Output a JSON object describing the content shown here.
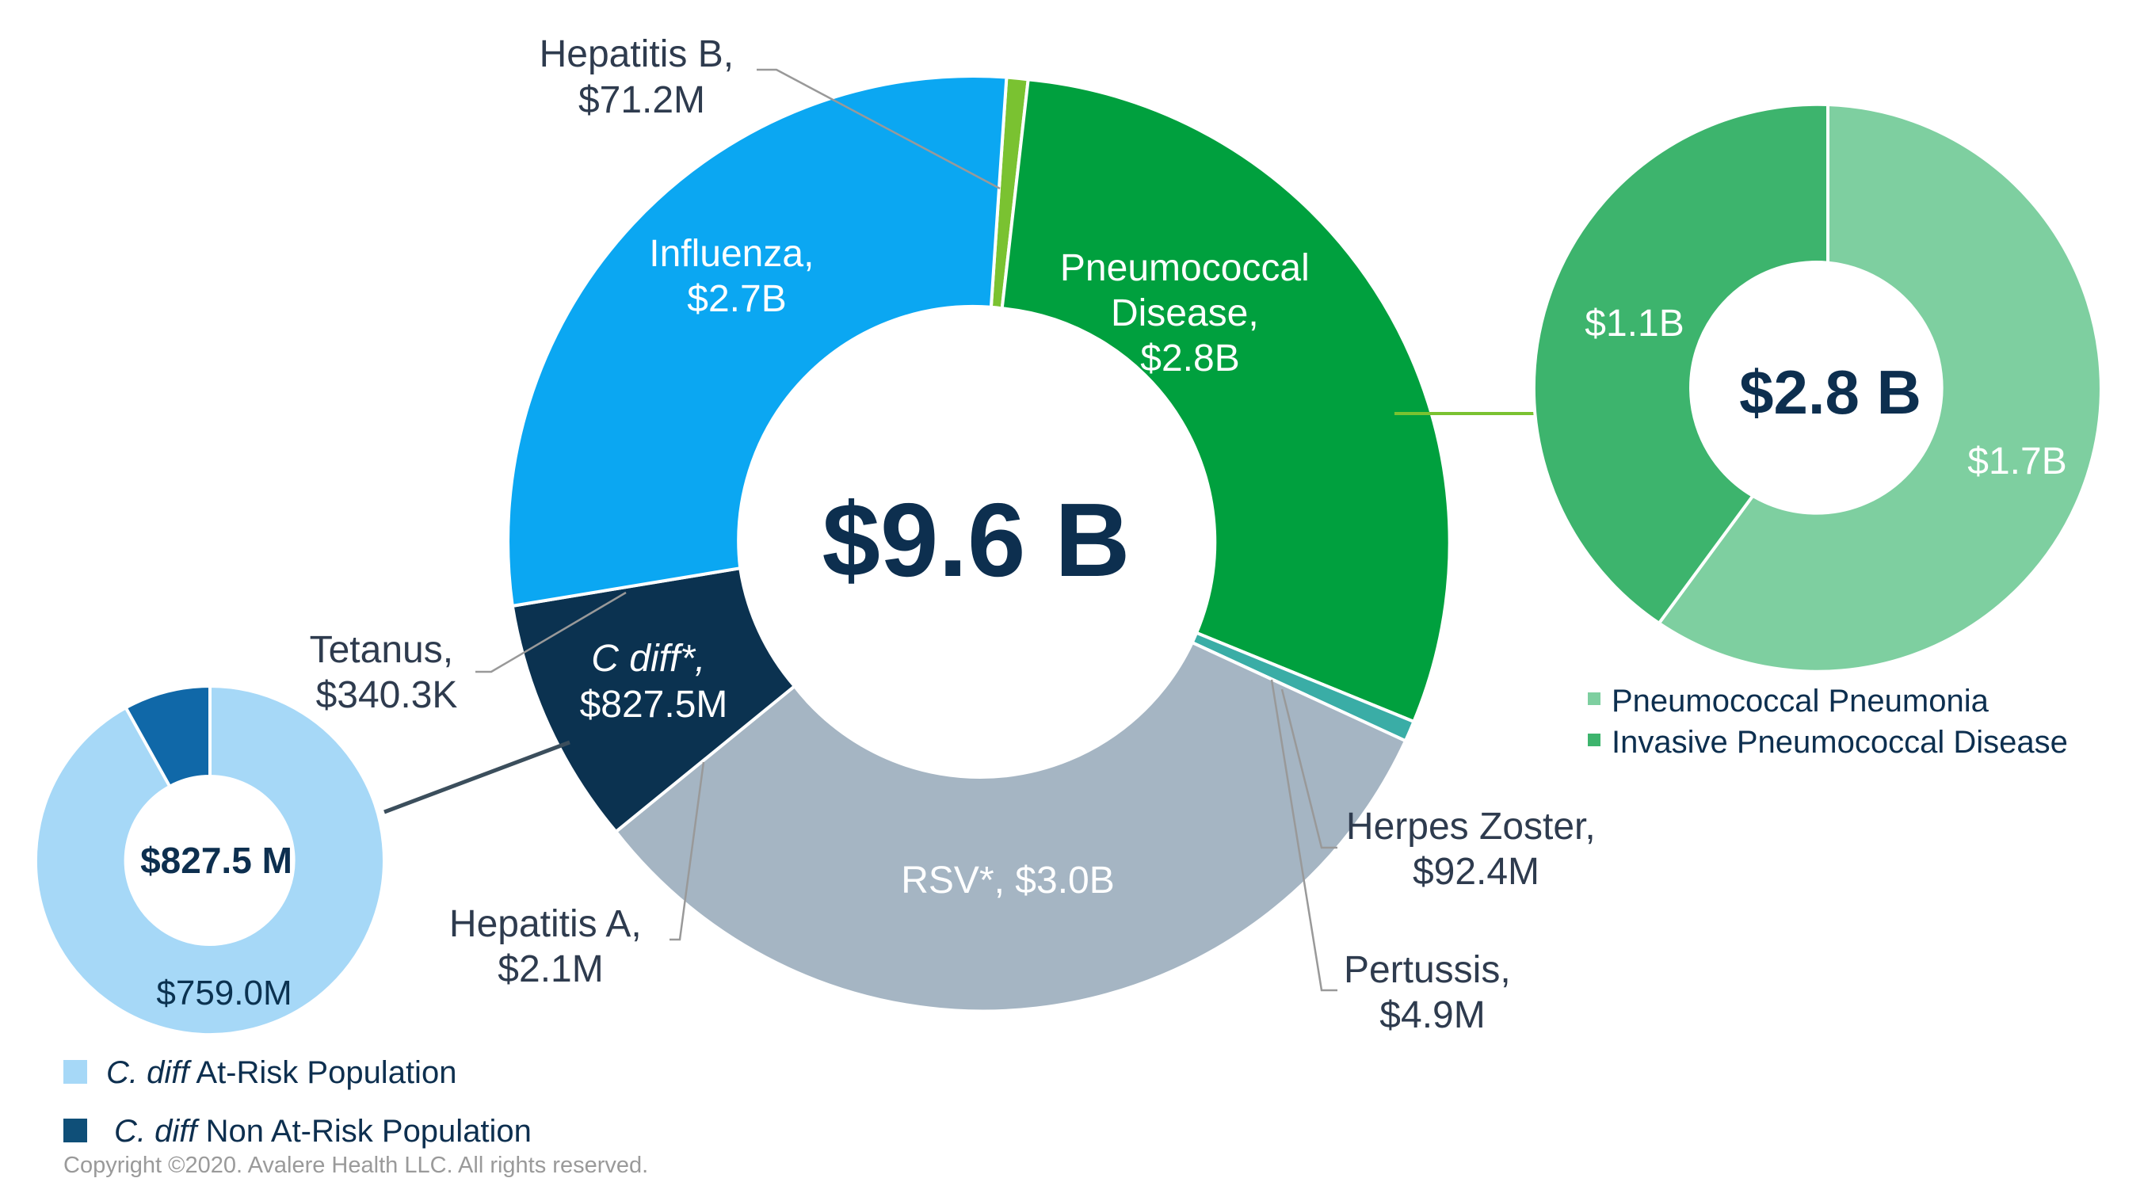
{
  "chart_data": [
    {
      "type": "donut",
      "center_label": "$9.6 B",
      "slices": [
        {
          "name": "Hepatitis B",
          "value": 71.2,
          "label": [
            "Hepatitis B,",
            "$71.2M"
          ],
          "color": "#7ac231"
        },
        {
          "name": "Pneumococcal Disease",
          "value": 2800,
          "label": [
            "Pneumococcal",
            "Disease,",
            "$2.8B"
          ],
          "color": "#00a03e"
        },
        {
          "name": "Herpes Zoster",
          "value": 92.4,
          "label": [
            "Herpes Zoster,",
            "$92.4M"
          ],
          "color": "#3aada6"
        },
        {
          "name": "Pertussis",
          "value": 4.9,
          "label": [
            "Pertussis,",
            "$4.9M"
          ],
          "color": "#a5b5c3"
        },
        {
          "name": "RSV*",
          "value": 3000,
          "label": [
            "RSV*, $3.0B"
          ],
          "color": "#a5b5c3"
        },
        {
          "name": "Hepatitis A",
          "value": 2.1,
          "label": [
            "Hepatitis A,",
            "$2.1M"
          ],
          "color": "#a5b5c3"
        },
        {
          "name": "C diff*",
          "value": 827.5,
          "label": [
            "C diff*,",
            "$827.5M"
          ],
          "color": "#0b3250"
        },
        {
          "name": "Tetanus",
          "value": 0.3403,
          "label": [
            "Tetanus,",
            "$340.3K"
          ],
          "color": "#0ba7f2"
        },
        {
          "name": "Influenza",
          "value": 2700,
          "label": [
            "Influenza,",
            "$2.7B"
          ],
          "color": "#0ba7f2"
        }
      ]
    },
    {
      "type": "donut",
      "center_label": "$2.8 B",
      "slices": [
        {
          "name": "Pneumococcal Pneumonia",
          "value": 1.7,
          "label": "$1.7B",
          "color": "#7ecfa0"
        },
        {
          "name": "Invasive Pneumococcal Disease",
          "value": 1.1,
          "label": "$1.1B",
          "color": "#3db46d"
        }
      ],
      "legend": [
        "Pneumococcal Pneumonia",
        "Invasive Pneumococcal Disease"
      ],
      "legend_position": "bottom"
    },
    {
      "type": "donut",
      "center_label": "$827.5 M",
      "slices": [
        {
          "name": "C. diff At-Risk Population",
          "value": 759.0,
          "label": "$759.0M",
          "color": "#a6d8f7"
        },
        {
          "name": "C. diff Non At-Risk Population",
          "value": 68.5,
          "label": "",
          "color": "#1068a8"
        }
      ],
      "legend": [
        {
          "italic": "C. diff",
          "rest": " At-Risk Population"
        },
        {
          "italic": "C. diff",
          "rest": " Non At-Risk Population"
        }
      ],
      "legend_position": "bottom"
    }
  ],
  "footer": {
    "copyright": "Copyright ©2020. Avalere Health LLC. All rights reserved."
  }
}
